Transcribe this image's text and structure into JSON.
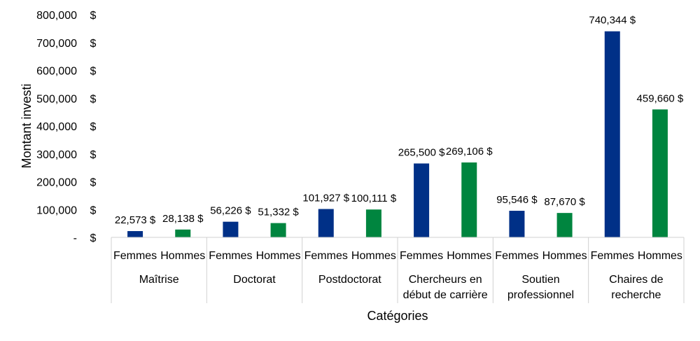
{
  "chart_data": {
    "type": "bar",
    "xlabel": "Catégories",
    "ylabel": "Montant investi",
    "ylim": [
      0,
      800000
    ],
    "yticks": [
      "-",
      "100,000",
      "200,000",
      "300,000",
      "400,000",
      "500,000",
      "600,000",
      "700,000",
      "800,000"
    ],
    "y_unit": "$",
    "groups": [
      {
        "name": [
          "Maîtrise"
        ],
        "bars": [
          {
            "label": "Femmes",
            "value": 22573,
            "text": "22,573 $"
          },
          {
            "label": "Hommes",
            "value": 28138,
            "text": "28,138 $"
          }
        ]
      },
      {
        "name": [
          "Doctorat"
        ],
        "bars": [
          {
            "label": "Femmes",
            "value": 56226,
            "text": "56,226 $"
          },
          {
            "label": "Hommes",
            "value": 51332,
            "text": "51,332 $"
          }
        ]
      },
      {
        "name": [
          "Postdoctorat"
        ],
        "bars": [
          {
            "label": "Femmes",
            "value": 101927,
            "text": "101,927 $"
          },
          {
            "label": "Hommes",
            "value": 100111,
            "text": "100,111 $"
          }
        ]
      },
      {
        "name": [
          "Chercheurs en",
          "début de carrière"
        ],
        "bars": [
          {
            "label": "Femmes",
            "value": 265500,
            "text": "265,500 $"
          },
          {
            "label": "Hommes",
            "value": 269106,
            "text": "269,106 $"
          }
        ]
      },
      {
        "name": [
          "Soutien",
          "professionnel"
        ],
        "bars": [
          {
            "label": "Femmes",
            "value": 95546,
            "text": "95,546 $"
          },
          {
            "label": "Hommes",
            "value": 87670,
            "text": "87,670 $"
          }
        ]
      },
      {
        "name": [
          "Chaires de",
          "recherche"
        ],
        "bars": [
          {
            "label": "Femmes",
            "value": 740344,
            "text": "740,344 $"
          },
          {
            "label": "Hommes",
            "value": 459660,
            "text": "459,660 $"
          }
        ]
      }
    ],
    "colors": {
      "Femmes": "#003087",
      "Hommes": "#00853f"
    },
    "grid": false,
    "legend": "none"
  }
}
